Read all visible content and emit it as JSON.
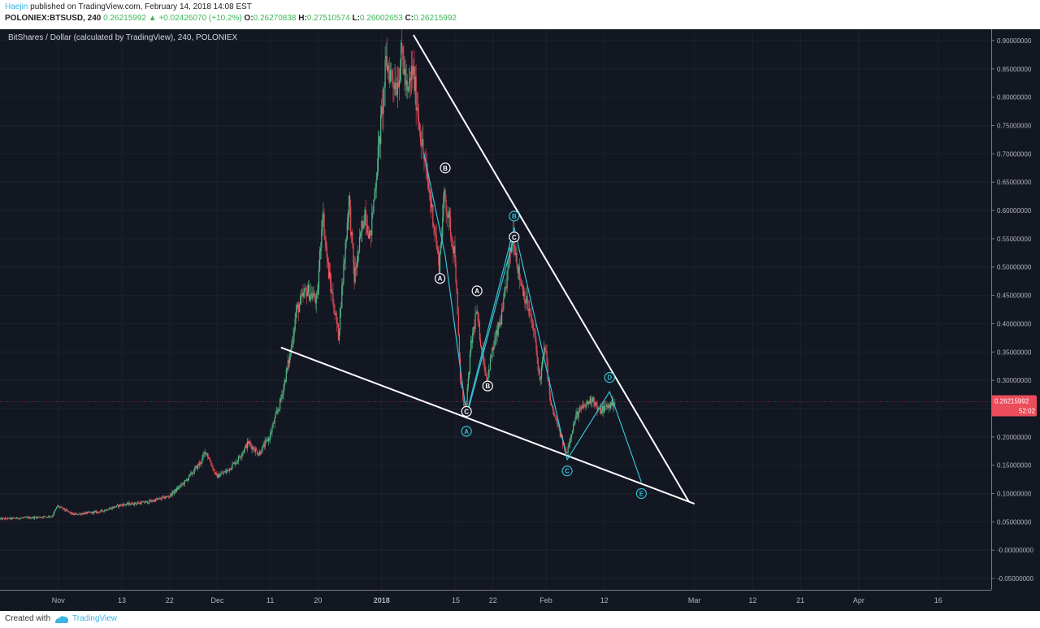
{
  "header": {
    "author": "Haejin",
    "published_text": "published on TradingView.com, February 14, 2018 14:08 EST",
    "symbol": "POLONIEX:BTSUSD, 240",
    "open_value": "0.26215992",
    "change": "+0.02426070 (+10.2%)",
    "o_label": "O:",
    "o_value": "0.26270838",
    "h_label": "H:",
    "h_value": "0.27510574",
    "l_label": "L:",
    "l_value": "0.26002653",
    "c_label": "C:",
    "c_value": "0.26215992"
  },
  "footer": {
    "created_with": "Created with",
    "brand": "TradingView"
  },
  "colors": {
    "background": "#131722",
    "up": "#53b987",
    "down": "#eb4d5c",
    "wave": "#33c2d6",
    "trendline": "#ffffff",
    "price_tag": "#eb4d5c"
  },
  "chart_data": {
    "type": "candlestick",
    "title": "BitShares / Dollar (calculated by TradingView), 240, POLONIEX",
    "x_tick_labels": [
      {
        "label": "Nov",
        "date": "2017-11-01"
      },
      {
        "label": "13",
        "date": "2017-11-13"
      },
      {
        "label": "22",
        "date": "2017-11-22"
      },
      {
        "label": "Dec",
        "date": "2017-12-01"
      },
      {
        "label": "11",
        "date": "2017-12-11"
      },
      {
        "label": "20",
        "date": "2017-12-20"
      },
      {
        "label": "2018",
        "date": "2018-01-01"
      },
      {
        "label": "15",
        "date": "2018-01-15"
      },
      {
        "label": "22",
        "date": "2018-01-22"
      },
      {
        "label": "Feb",
        "date": "2018-02-01"
      },
      {
        "label": "12",
        "date": "2018-02-12"
      },
      {
        "label": "Mar",
        "date": "2018-03-01"
      },
      {
        "label": "12",
        "date": "2018-03-12"
      },
      {
        "label": "21",
        "date": "2018-03-21"
      },
      {
        "label": "Apr",
        "date": "2018-04-01"
      },
      {
        "label": "16",
        "date": "2018-04-16"
      }
    ],
    "y_tick_labels": [
      "0.90000000",
      "0.85000000",
      "0.80000000",
      "0.75000000",
      "0.70000000",
      "0.65000000",
      "0.60000000",
      "0.55000000",
      "0.50000000",
      "0.45000000",
      "0.40000000",
      "0.35000000",
      "0.30000000",
      "0.25000000",
      "0.20000000",
      "0.15000000",
      "0.10000000",
      "0.05000000",
      "-0.00000000",
      "-0.05000000"
    ],
    "y_range": [
      -0.07,
      0.92
    ],
    "x_range": [
      "2017-10-21",
      "2018-04-26"
    ],
    "last_price": "0.26215992",
    "countdown": "52:02",
    "price_path": [
      [
        "2017-10-21",
        0.055
      ],
      [
        "2017-10-28",
        0.058
      ],
      [
        "2017-10-31",
        0.06
      ],
      [
        "2017-11-01",
        0.078
      ],
      [
        "2017-11-04",
        0.063
      ],
      [
        "2017-11-09",
        0.068
      ],
      [
        "2017-11-13",
        0.08
      ],
      [
        "2017-11-18",
        0.085
      ],
      [
        "2017-11-22",
        0.095
      ],
      [
        "2017-11-25",
        0.12
      ],
      [
        "2017-11-28",
        0.155
      ],
      [
        "2017-11-29",
        0.175
      ],
      [
        "2017-12-01",
        0.13
      ],
      [
        "2017-12-03",
        0.14
      ],
      [
        "2017-12-05",
        0.16
      ],
      [
        "2017-12-07",
        0.19
      ],
      [
        "2017-12-09",
        0.17
      ],
      [
        "2017-12-11",
        0.2
      ],
      [
        "2017-12-13",
        0.26
      ],
      [
        "2017-12-15",
        0.35
      ],
      [
        "2017-12-16",
        0.42
      ],
      [
        "2017-12-18",
        0.46
      ],
      [
        "2017-12-20",
        0.44
      ],
      [
        "2017-12-21",
        0.6
      ],
      [
        "2017-12-22",
        0.5
      ],
      [
        "2017-12-24",
        0.38
      ],
      [
        "2017-12-26",
        0.62
      ],
      [
        "2017-12-27",
        0.48
      ],
      [
        "2017-12-29",
        0.6
      ],
      [
        "2017-12-30",
        0.55
      ],
      [
        "2018-01-01",
        0.75
      ],
      [
        "2018-01-02",
        0.86
      ],
      [
        "2018-01-04",
        0.82
      ],
      [
        "2018-01-05",
        0.88
      ],
      [
        "2018-01-06",
        0.8
      ],
      [
        "2018-01-07",
        0.85
      ],
      [
        "2018-01-09",
        0.7
      ],
      [
        "2018-01-11",
        0.58
      ],
      [
        "2018-01-12",
        0.5
      ],
      [
        "2018-01-13",
        0.63
      ],
      [
        "2018-01-15",
        0.52
      ],
      [
        "2018-01-16",
        0.3
      ],
      [
        "2018-01-17",
        0.24
      ],
      [
        "2018-01-18",
        0.36
      ],
      [
        "2018-01-19",
        0.42
      ],
      [
        "2018-01-20",
        0.36
      ],
      [
        "2018-01-21",
        0.3
      ],
      [
        "2018-01-22",
        0.35
      ],
      [
        "2018-01-24",
        0.42
      ],
      [
        "2018-01-25",
        0.5
      ],
      [
        "2018-01-26",
        0.56
      ],
      [
        "2018-01-27",
        0.49
      ],
      [
        "2018-01-29",
        0.42
      ],
      [
        "2018-01-30",
        0.38
      ],
      [
        "2018-01-31",
        0.3
      ],
      [
        "2018-02-01",
        0.36
      ],
      [
        "2018-02-02",
        0.26
      ],
      [
        "2018-02-04",
        0.2
      ],
      [
        "2018-02-05",
        0.17
      ],
      [
        "2018-02-06",
        0.21
      ],
      [
        "2018-02-07",
        0.24
      ],
      [
        "2018-02-09",
        0.26
      ],
      [
        "2018-02-10",
        0.27
      ],
      [
        "2018-02-11",
        0.245
      ],
      [
        "2018-02-13",
        0.255
      ],
      [
        "2018-02-14",
        0.262
      ]
    ],
    "trendlines": [
      {
        "name": "upper",
        "points": [
          [
            "2018-01-07",
            0.91
          ],
          [
            "2018-02-28",
            0.085
          ]
        ]
      },
      {
        "name": "lower",
        "points": [
          [
            "2017-12-13",
            0.358
          ],
          [
            "2018-03-01",
            0.082
          ]
        ]
      }
    ],
    "wave_counts": [
      {
        "points": [
          [
            "2018-01-09",
            0.7
          ],
          [
            "2018-01-13",
            0.52
          ],
          [
            "2018-01-17",
            0.24
          ],
          [
            "2018-01-26",
            0.57
          ],
          [
            "2018-02-05",
            0.16
          ],
          [
            "2018-02-13",
            0.28
          ],
          [
            "2018-02-19",
            0.12
          ]
        ]
      },
      {
        "points": [
          [
            "2018-01-17",
            0.235
          ],
          [
            "2018-01-26",
            0.555
          ]
        ]
      }
    ],
    "annotations": [
      {
        "text": "B",
        "date": "2018-01-13",
        "value": 0.675,
        "style": "white"
      },
      {
        "text": "A",
        "date": "2018-01-12",
        "value": 0.48,
        "style": "white"
      },
      {
        "text": "A",
        "date": "2018-01-19",
        "value": 0.458,
        "style": "white"
      },
      {
        "text": "C",
        "date": "2018-01-17",
        "value": 0.245,
        "style": "white"
      },
      {
        "text": "A",
        "date": "2018-01-17",
        "value": 0.21,
        "style": "cyan"
      },
      {
        "text": "B",
        "date": "2018-01-21",
        "value": 0.29,
        "style": "white"
      },
      {
        "text": "B",
        "date": "2018-01-26",
        "value": 0.59,
        "style": "cyan"
      },
      {
        "text": "C",
        "date": "2018-01-26",
        "value": 0.553,
        "style": "white"
      },
      {
        "text": "D",
        "date": "2018-02-13",
        "value": 0.305,
        "style": "cyan"
      },
      {
        "text": "C",
        "date": "2018-02-05",
        "value": 0.14,
        "style": "cyan"
      },
      {
        "text": "E",
        "date": "2018-02-19",
        "value": 0.1,
        "style": "cyan"
      }
    ]
  }
}
